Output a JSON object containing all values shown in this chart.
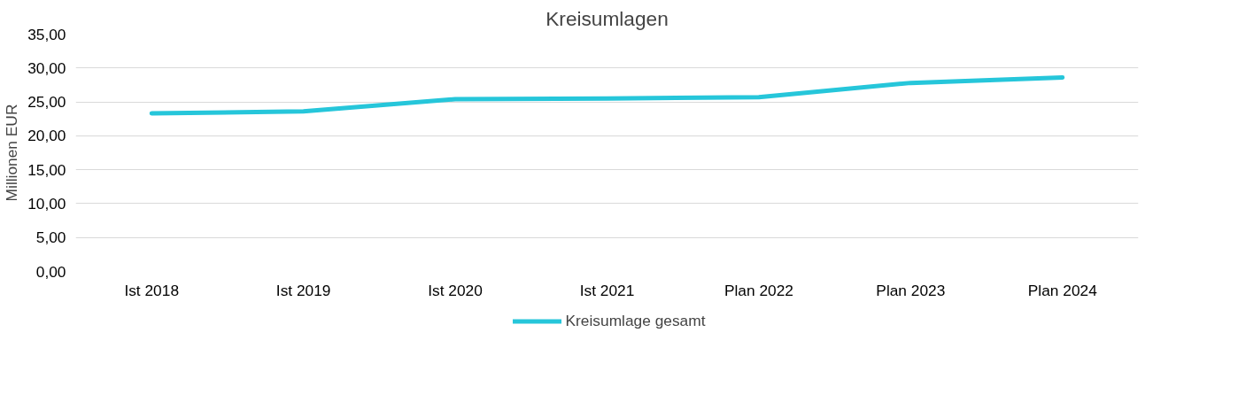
{
  "chart_data": {
    "type": "line",
    "title": "Kreisumlagen",
    "ylabel": "Millionen EUR",
    "categories": [
      "Ist 2018",
      "Ist 2019",
      "Ist 2020",
      "Ist 2021",
      "Plan 2022",
      "Plan 2023",
      "Plan 2024"
    ],
    "series": [
      {
        "name": "Kreisumlage gesamt",
        "color": "#26c6da",
        "values": [
          23.3,
          23.6,
          25.4,
          25.5,
          25.7,
          27.8,
          28.6
        ]
      }
    ],
    "ylim": [
      0,
      35
    ],
    "yticks": [
      {
        "value": 0,
        "label": "0,00"
      },
      {
        "value": 5,
        "label": "5,00"
      },
      {
        "value": 10,
        "label": "10,00"
      },
      {
        "value": 15,
        "label": "15,00"
      },
      {
        "value": 20,
        "label": "20,00"
      },
      {
        "value": 25,
        "label": "25,00"
      },
      {
        "value": 30,
        "label": "30,00"
      },
      {
        "value": 35,
        "label": "35,00"
      }
    ],
    "grid": "y",
    "legend": "bottom",
    "marker": "none",
    "line_style": "solid"
  }
}
